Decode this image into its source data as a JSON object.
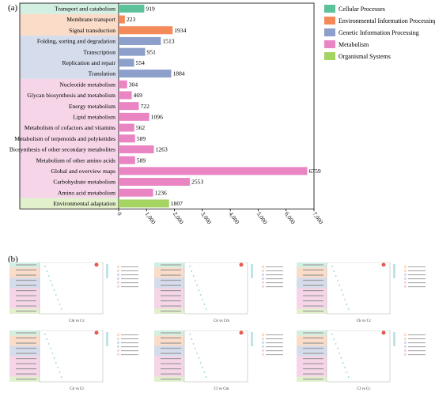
{
  "panel_a_label": "(a)",
  "panel_b_label": "(b)",
  "chart_data": {
    "type": "bar",
    "orientation": "horizontal",
    "categories": [
      "Transport and catabolism",
      "Membrane transport",
      "Signal transduction",
      "Folding, sorting and degradation",
      "Transcription",
      "Replication and repair",
      "Translation",
      "Nucleotide metabolism",
      "Glycan biosynthesis and metabolism",
      "Energy metabolism",
      "Lipid metabolism",
      "Metabolism of cofactors and vitamins",
      "Metabolism of terpenoids and polyketides",
      "Biosynthesis of other secondary metabolites",
      "Metabolism of other amino acids",
      "Global and overview maps",
      "Carbohydrate metabolism",
      "Amino acid metabolism",
      "Environmental adaptation"
    ],
    "values": [
      919,
      223,
      1934,
      1513,
      951,
      554,
      1884,
      304,
      469,
      722,
      1096,
      562,
      589,
      1263,
      589,
      6759,
      2553,
      1236,
      1807
    ],
    "value_labels": [
      "919",
      "223",
      "1934",
      "1513",
      "951",
      "554",
      "1884",
      "304",
      "469",
      "722",
      "1096",
      "562",
      "589",
      "1263",
      "589",
      "6759",
      "2553",
      "1236",
      "1807"
    ],
    "groups": [
      "Cellular Processes",
      "Environmental Information Processing",
      "Environmental Information Processing",
      "Genetic Information Processing",
      "Genetic Information Processing",
      "Genetic Information Processing",
      "Genetic Information Processing",
      "Metabolism",
      "Metabolism",
      "Metabolism",
      "Metabolism",
      "Metabolism",
      "Metabolism",
      "Metabolism",
      "Metabolism",
      "Metabolism",
      "Metabolism",
      "Metabolism",
      "Organismal Systems"
    ],
    "legend": [
      {
        "name": "Cellular Processes",
        "color": "#5cc29a"
      },
      {
        "name": "Environmental Information Processing",
        "color": "#f4895a"
      },
      {
        "name": "Genetic Information Processing",
        "color": "#8d9fcb"
      },
      {
        "name": "Metabolism",
        "color": "#e985c2"
      },
      {
        "name": "Organismal Systems",
        "color": "#a4d462"
      }
    ],
    "band_colors": {
      "Cellular Processes": "#d3efe2",
      "Environmental Information Processing": "#fbdcc9",
      "Genetic Information Processing": "#d5dcec",
      "Metabolism": "#f6d5e9",
      "Organismal Systems": "#e2f0cc"
    },
    "xticks": [
      "0",
      "1,000",
      "2,000",
      "3,000",
      "4,000",
      "5,000",
      "6,000",
      "7,000"
    ],
    "xlim": [
      0,
      7000
    ],
    "legend_position": "top-right",
    "grid": false
  },
  "subplots": [
    {
      "label": "Cm vs Cc"
    },
    {
      "label": "Ck vs Cm"
    },
    {
      "label": "Ck vs Cc"
    },
    {
      "label": "Ck vs Cl"
    },
    {
      "label": "Cl vs Cm"
    },
    {
      "label": "Cl vs Cc"
    }
  ]
}
